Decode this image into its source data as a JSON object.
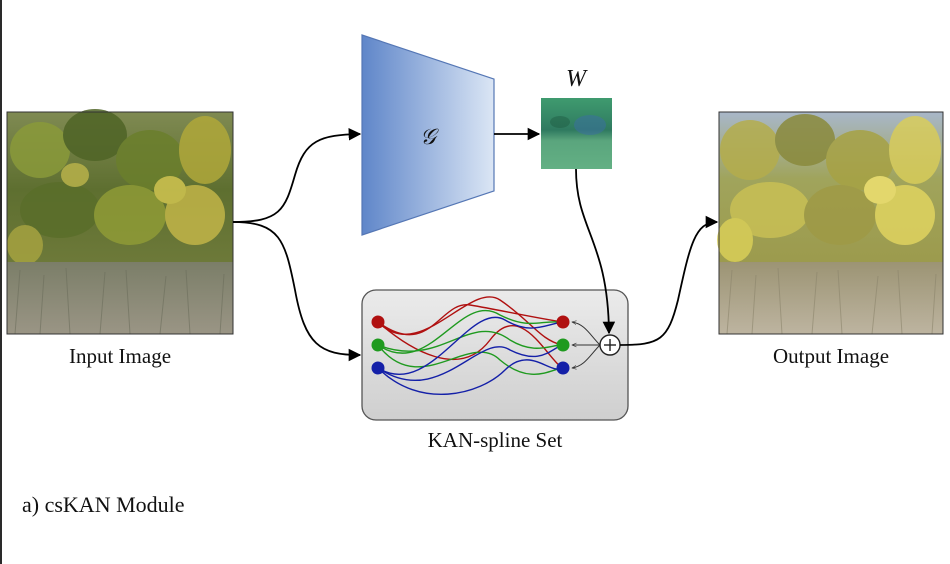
{
  "figure": {
    "input_label": "Input Image",
    "output_label": "Output Image",
    "generator_symbol": "𝒢",
    "weight_label": "W",
    "spline_set_label": "KAN-spline Set",
    "module_title": "a) csKAN Module",
    "sum_symbol": "+"
  },
  "colors": {
    "red": "#b01010",
    "green": "#1f9a1f",
    "blue": "#1420a8",
    "generator_fill": "#7ea2d8",
    "box_fill": "#d6d6d6"
  }
}
